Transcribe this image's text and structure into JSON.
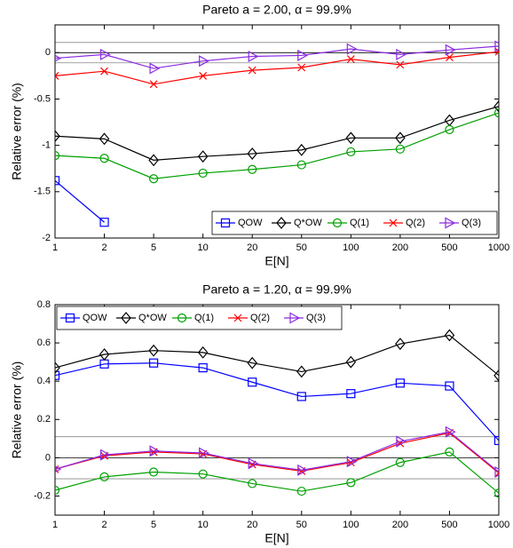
{
  "chart_data": [
    {
      "type": "line",
      "title": "Pareto a =  2.00, α =  99.9%",
      "xlabel": "E[N]",
      "ylabel": "Relative error (%)",
      "categories": [
        "1",
        "2",
        "5",
        "10",
        "20",
        "50",
        "100",
        "200",
        "500",
        "1000"
      ],
      "ylim": [
        -2,
        0.3
      ],
      "yticks": [
        -2,
        -1.5,
        -1,
        -0.5,
        0
      ],
      "hlines": [
        0.11,
        -0.11
      ],
      "legend": "lower right",
      "series": [
        {
          "name": "QOW",
          "color": "#0000ff",
          "marker": "square",
          "values": [
            -1.38,
            -1.83,
            null,
            null,
            null,
            null,
            null,
            null,
            null,
            null
          ]
        },
        {
          "name": "Q*OW",
          "color": "#000000",
          "marker": "diamond",
          "values": [
            -0.9,
            -0.93,
            -1.16,
            -1.12,
            -1.09,
            -1.05,
            -0.92,
            -0.92,
            -0.73,
            -0.58
          ]
        },
        {
          "name": "Q(1)",
          "color": "#00a000",
          "marker": "circle",
          "values": [
            -1.11,
            -1.14,
            -1.36,
            -1.3,
            -1.26,
            -1.21,
            -1.07,
            -1.04,
            -0.83,
            -0.65
          ]
        },
        {
          "name": "Q(2)",
          "color": "#ff0000",
          "marker": "x",
          "values": [
            -0.25,
            -0.2,
            -0.34,
            -0.25,
            -0.19,
            -0.16,
            -0.07,
            -0.13,
            -0.05,
            0.01
          ]
        },
        {
          "name": "Q(3)",
          "color": "#8a2be2",
          "marker": "triangle",
          "values": [
            -0.06,
            -0.02,
            -0.17,
            -0.09,
            -0.04,
            -0.03,
            0.04,
            -0.02,
            0.03,
            0.07
          ]
        }
      ]
    },
    {
      "type": "line",
      "title": "Pareto a =  1.20, α =  99.9%",
      "xlabel": "E[N]",
      "ylabel": "Relative error (%)",
      "categories": [
        "1",
        "2",
        "5",
        "10",
        "20",
        "50",
        "100",
        "200",
        "500",
        "1000"
      ],
      "ylim": [
        -0.3,
        0.8
      ],
      "yticks": [
        -0.2,
        0,
        0.2,
        0.4,
        0.6,
        0.8
      ],
      "hlines": [
        0.11,
        -0.11
      ],
      "legend": "upper left",
      "series": [
        {
          "name": "QOW",
          "color": "#0000ff",
          "marker": "square",
          "values": [
            0.43,
            0.49,
            0.495,
            0.47,
            0.395,
            0.32,
            0.335,
            0.39,
            0.375,
            0.09
          ]
        },
        {
          "name": "Q*OW",
          "color": "#000000",
          "marker": "diamond",
          "values": [
            0.47,
            0.54,
            0.56,
            0.55,
            0.495,
            0.45,
            0.5,
            0.595,
            0.64,
            0.43
          ]
        },
        {
          "name": "Q(1)",
          "color": "#00a000",
          "marker": "circle",
          "values": [
            -0.17,
            -0.1,
            -0.075,
            -0.085,
            -0.135,
            -0.175,
            -0.13,
            -0.025,
            0.03,
            -0.185
          ]
        },
        {
          "name": "Q(2)",
          "color": "#ff0000",
          "marker": "x",
          "values": [
            -0.06,
            0.01,
            0.03,
            0.02,
            -0.035,
            -0.07,
            -0.025,
            0.075,
            0.13,
            -0.08
          ]
        },
        {
          "name": "Q(3)",
          "color": "#8a2be2",
          "marker": "triangle",
          "values": [
            -0.06,
            0.015,
            0.035,
            0.025,
            -0.03,
            -0.065,
            -0.02,
            0.085,
            0.135,
            -0.075
          ]
        }
      ]
    }
  ]
}
